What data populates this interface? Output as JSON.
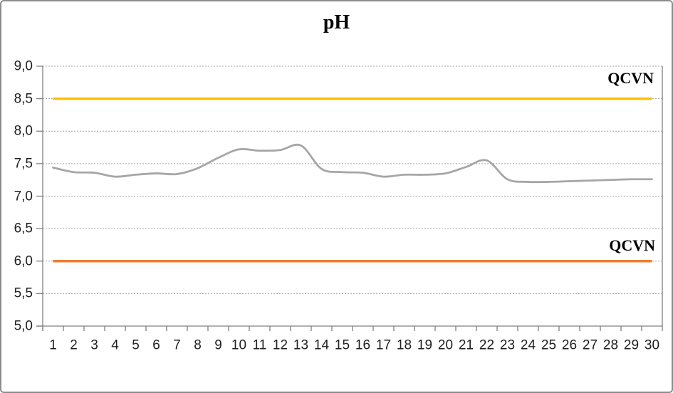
{
  "chart_data": {
    "type": "line",
    "title": "pH",
    "xlabel": "",
    "ylabel": "",
    "ylim": [
      5.0,
      9.0
    ],
    "y_ticks": [
      9.0,
      8.5,
      8.0,
      7.5,
      7.0,
      6.5,
      6.0,
      5.5,
      5.0
    ],
    "y_tick_labels": [
      "9,0",
      "8,5",
      "8,0",
      "7,5",
      "7,0",
      "6,5",
      "6,0",
      "5,5",
      "5,0"
    ],
    "x_tick_labels": [
      "1",
      "2",
      "3",
      "4",
      "5",
      "6",
      "7",
      "8",
      "9",
      "10",
      "11",
      "12",
      "13",
      "14",
      "15",
      "16",
      "17",
      "18",
      "19",
      "20",
      "21",
      "22",
      "23",
      "24",
      "25",
      "26",
      "27",
      "28",
      "29",
      "30"
    ],
    "grid": "horizontal-dotted",
    "legend_position": "none",
    "series": [
      {
        "name": "pH",
        "color": "#A6A6A6",
        "smooth": true,
        "values": [
          7.44,
          7.37,
          7.36,
          7.3,
          7.33,
          7.35,
          7.34,
          7.43,
          7.59,
          7.72,
          7.7,
          7.71,
          7.78,
          7.42,
          7.37,
          7.36,
          7.3,
          7.33,
          7.33,
          7.35,
          7.45,
          7.55,
          7.26,
          7.22,
          7.22,
          7.23,
          7.24,
          7.25,
          7.26,
          7.26
        ]
      }
    ],
    "reference_lines": [
      {
        "label": "QCVN",
        "value": 8.5,
        "color": "#FFC000"
      },
      {
        "label": "QCVN",
        "value": 6.0,
        "color": "#ED7D31"
      }
    ]
  },
  "colors": {
    "axis": "#808080",
    "gridline": "#A3A3A3",
    "border": "#8C8C8C",
    "tick_text": "#1F1F1F"
  }
}
